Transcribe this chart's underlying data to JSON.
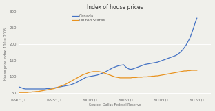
{
  "title": "Index of house prices",
  "ylabel": "House price Index, 100 = 2005",
  "xlabel": "Source: Dallas Federal Reserve",
  "legend": [
    "Canada",
    "United States"
  ],
  "line_colors": [
    "#4472c4",
    "#e8921e"
  ],
  "ylim": [
    40,
    300
  ],
  "yticks": [
    50,
    100,
    150,
    200,
    250,
    300
  ],
  "xtick_labels": [
    "1990:Q1",
    "1995:Q1",
    "2000:Q1",
    "2005:Q1",
    "2010:Q1",
    "2015:Q1"
  ],
  "xtick_positions": [
    1990,
    1995,
    2000,
    2005,
    2010,
    2015
  ],
  "xlim": [
    1990,
    2017
  ],
  "background_color": "#f0f0eb",
  "canada": [
    70,
    68,
    66,
    64,
    63,
    63,
    63,
    63,
    63,
    63,
    63,
    63,
    63,
    63,
    63,
    63,
    64,
    64,
    65,
    65,
    66,
    67,
    68,
    69,
    70,
    71,
    72,
    73,
    74,
    75,
    77,
    79,
    81,
    84,
    87,
    90,
    93,
    96,
    99,
    100,
    101,
    102,
    103,
    104,
    105,
    107,
    109,
    111,
    113,
    116,
    119,
    122,
    125,
    128,
    130,
    132,
    134,
    135,
    136,
    137,
    131,
    127,
    124,
    123,
    124,
    126,
    128,
    130,
    132,
    134,
    136,
    138,
    139,
    140,
    141,
    142,
    143,
    144,
    145,
    147,
    149,
    151,
    153,
    155,
    157,
    159,
    161,
    163,
    165,
    168,
    172,
    177,
    183,
    190,
    198,
    208,
    218,
    232,
    248,
    265,
    280
  ],
  "us": [
    52,
    52,
    52,
    52,
    52,
    52,
    53,
    53,
    54,
    54,
    55,
    55,
    56,
    57,
    58,
    59,
    60,
    61,
    62,
    63,
    64,
    66,
    68,
    70,
    72,
    74,
    76,
    79,
    82,
    85,
    88,
    91,
    94,
    97,
    100,
    103,
    106,
    108,
    110,
    112,
    114,
    115,
    116,
    116,
    116,
    116,
    115,
    114,
    112,
    110,
    108,
    106,
    104,
    102,
    100,
    99,
    98,
    97,
    97,
    97,
    97,
    97,
    97,
    97,
    98,
    98,
    98,
    99,
    99,
    99,
    100,
    100,
    100,
    101,
    101,
    102,
    102,
    103,
    103,
    104,
    105,
    106,
    107,
    108,
    109,
    110,
    111,
    112,
    113,
    114,
    115,
    116,
    117,
    118,
    118,
    119,
    119,
    120,
    120,
    120,
    120
  ]
}
